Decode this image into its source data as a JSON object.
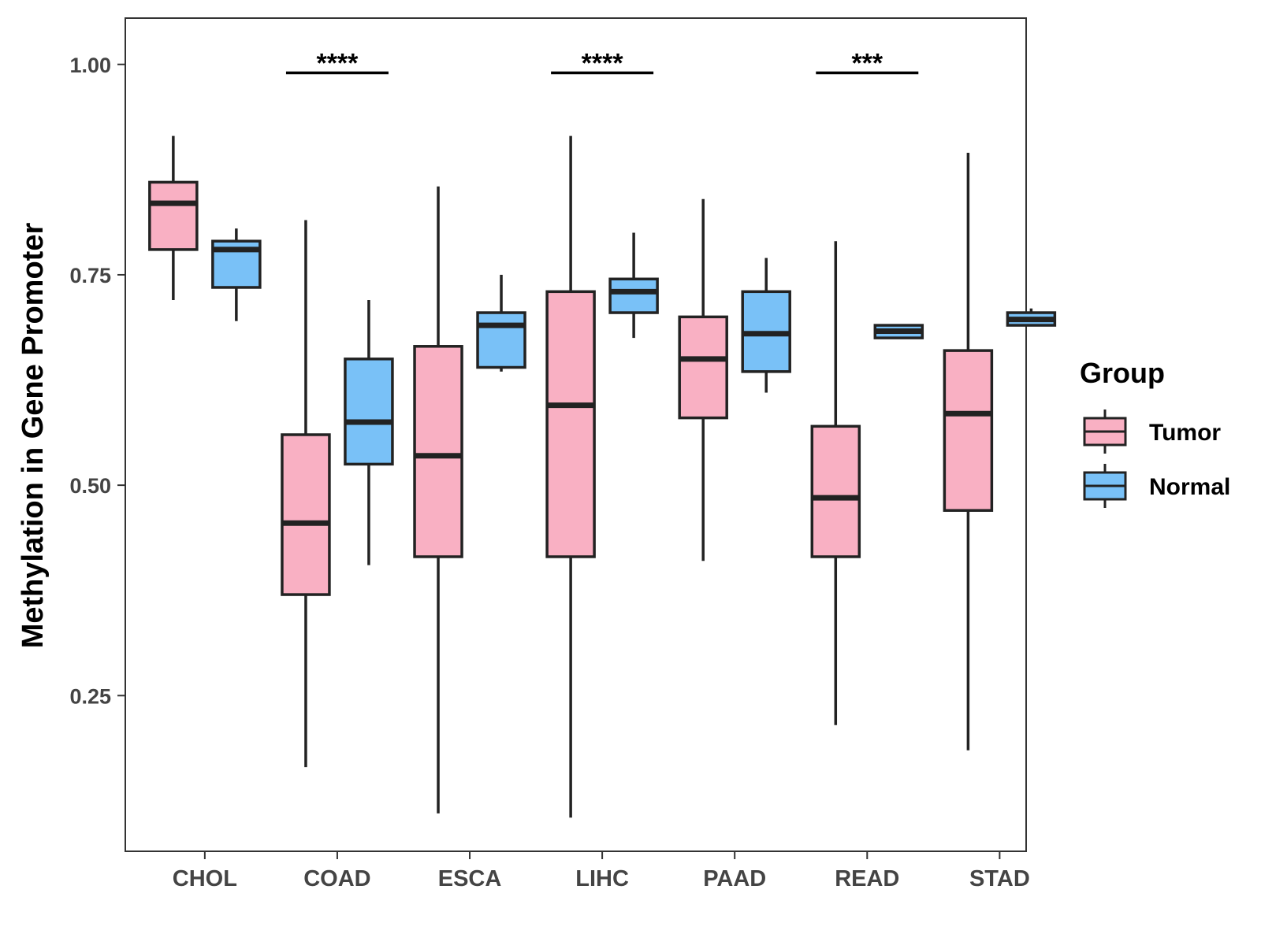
{
  "chart_data": {
    "type": "boxplot",
    "title": "",
    "xlabel": "",
    "ylabel": "Methylation in Gene Promoter",
    "ylim": [
      0.065,
      1.055
    ],
    "yticks": [
      0.25,
      0.5,
      0.75,
      1.0
    ],
    "ytick_labels": [
      "0.25",
      "0.50",
      "0.75",
      "1.00"
    ],
    "categories": [
      "CHOL",
      "COAD",
      "ESCA",
      "LIHC",
      "PAAD",
      "READ",
      "STAD"
    ],
    "grid": false,
    "legend": {
      "title": "Group",
      "position": "right",
      "entries": [
        {
          "name": "Tumor",
          "color": "#F9B0C3"
        },
        {
          "name": "Normal",
          "color": "#79C1F7"
        }
      ]
    },
    "series": [
      {
        "name": "Tumor",
        "color": "#F9B0C3",
        "boxes": [
          {
            "category": "CHOL",
            "min": 0.72,
            "q1": 0.78,
            "median": 0.835,
            "q3": 0.86,
            "max": 0.915
          },
          {
            "category": "COAD",
            "min": 0.165,
            "q1": 0.37,
            "median": 0.455,
            "q3": 0.56,
            "max": 0.815
          },
          {
            "category": "ESCA",
            "min": 0.11,
            "q1": 0.415,
            "median": 0.535,
            "q3": 0.665,
            "max": 0.855
          },
          {
            "category": "LIHC",
            "min": 0.105,
            "q1": 0.415,
            "median": 0.595,
            "q3": 0.73,
            "max": 0.915
          },
          {
            "category": "PAAD",
            "min": 0.41,
            "q1": 0.58,
            "median": 0.65,
            "q3": 0.7,
            "max": 0.84
          },
          {
            "category": "READ",
            "min": 0.215,
            "q1": 0.415,
            "median": 0.485,
            "q3": 0.57,
            "max": 0.79
          },
          {
            "category": "STAD",
            "min": 0.185,
            "q1": 0.47,
            "median": 0.585,
            "q3": 0.66,
            "max": 0.895
          }
        ]
      },
      {
        "name": "Normal",
        "color": "#79C1F7",
        "boxes": [
          {
            "category": "CHOL",
            "min": 0.695,
            "q1": 0.735,
            "median": 0.78,
            "q3": 0.79,
            "max": 0.805
          },
          {
            "category": "COAD",
            "min": 0.405,
            "q1": 0.525,
            "median": 0.575,
            "q3": 0.65,
            "max": 0.72
          },
          {
            "category": "ESCA",
            "min": 0.635,
            "q1": 0.64,
            "median": 0.69,
            "q3": 0.705,
            "max": 0.75
          },
          {
            "category": "LIHC",
            "min": 0.675,
            "q1": 0.705,
            "median": 0.73,
            "q3": 0.745,
            "max": 0.8
          },
          {
            "category": "PAAD",
            "min": 0.61,
            "q1": 0.635,
            "median": 0.68,
            "q3": 0.73,
            "max": 0.77
          },
          {
            "category": "READ",
            "min": 0.675,
            "q1": 0.675,
            "median": 0.683,
            "q3": 0.69,
            "max": 0.69
          },
          {
            "category": "STAD",
            "min": 0.69,
            "q1": 0.69,
            "median": 0.697,
            "q3": 0.705,
            "max": 0.71
          }
        ]
      }
    ],
    "annotations": [
      {
        "category": "COAD",
        "label": "****",
        "y": 0.99
      },
      {
        "category": "LIHC",
        "label": "****",
        "y": 0.99
      },
      {
        "category": "READ",
        "label": "***",
        "y": 0.99
      }
    ]
  }
}
